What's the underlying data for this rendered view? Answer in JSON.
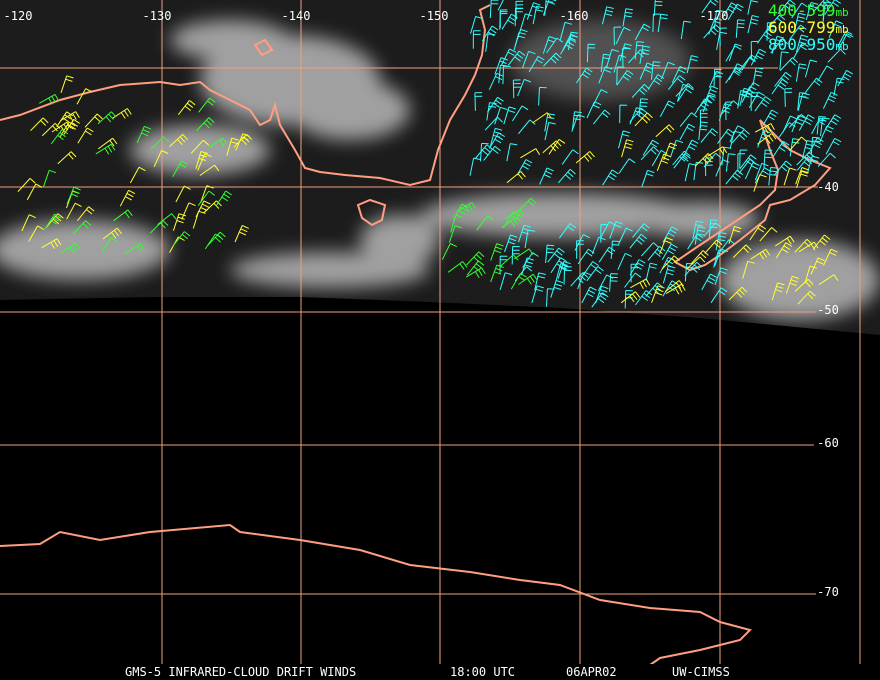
{
  "legend": [
    {
      "label": "400-599",
      "unit": "mb",
      "color": "#33ff33"
    },
    {
      "label": "600-799",
      "unit": "mb",
      "color": "#ffff33"
    },
    {
      "label": "800-950",
      "unit": "mb",
      "color": "#33ffff"
    }
  ],
  "longitude_labels": [
    "-120",
    "-130",
    "-140",
    "-150",
    "-160",
    "-170"
  ],
  "latitude_labels": [
    "-40",
    "-50",
    "-60",
    "-70"
  ],
  "footer": {
    "product": "GMS-5 INFRARED-CLOUD DRIFT WINDS",
    "time": "18:00 UTC",
    "date": "06APR02",
    "source": "UW-CIMSS"
  }
}
